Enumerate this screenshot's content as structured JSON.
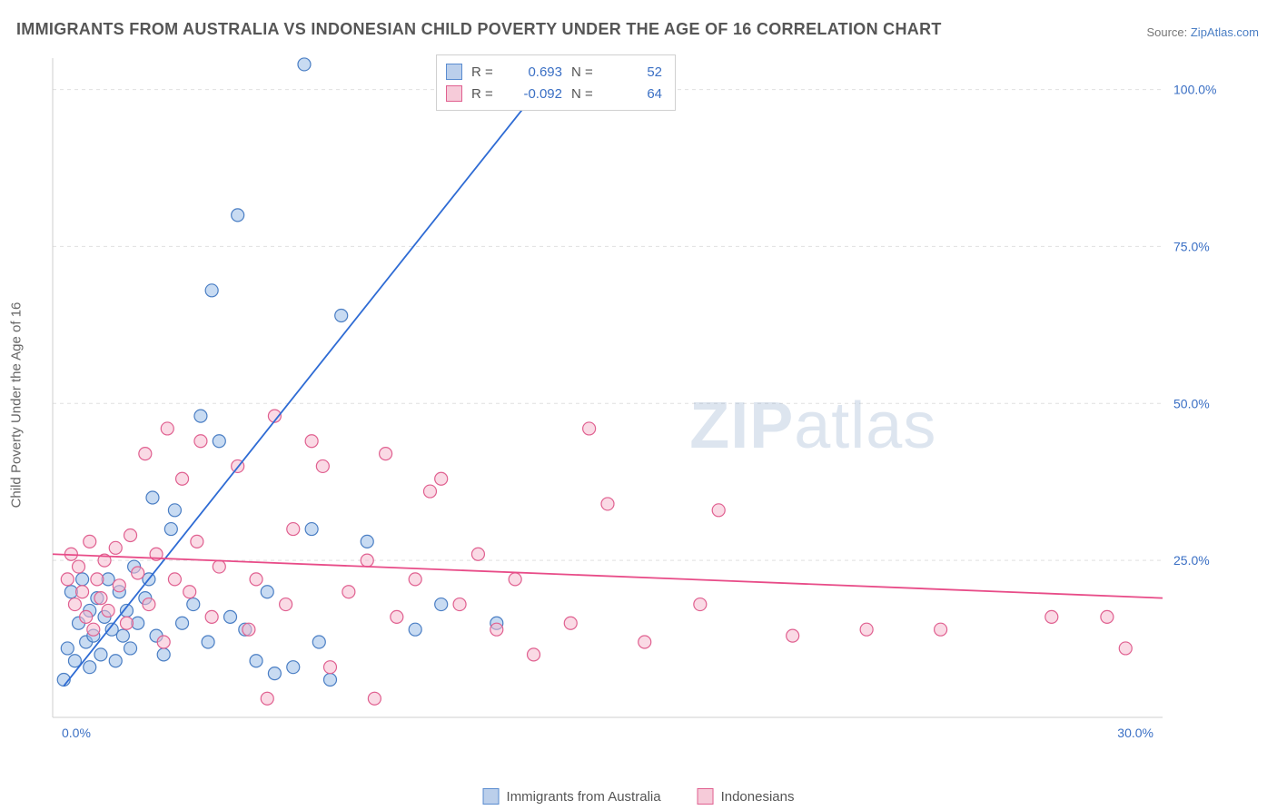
{
  "title": "IMMIGRANTS FROM AUSTRALIA VS INDONESIAN CHILD POVERTY UNDER THE AGE OF 16 CORRELATION CHART",
  "source_prefix": "Source: ",
  "source_link": "ZipAtlas.com",
  "ylabel": "Child Poverty Under the Age of 16",
  "watermark_a": "ZIP",
  "watermark_b": "atlas",
  "stats": [
    {
      "r_label": "R =",
      "r": "0.693",
      "n_label": "N =",
      "n": "52",
      "cls": "blue"
    },
    {
      "r_label": "R =",
      "r": "-0.092",
      "n_label": "N =",
      "n": "64",
      "cls": "pink"
    }
  ],
  "legend": [
    {
      "label": "Immigrants from Australia",
      "cls": "blue"
    },
    {
      "label": "Indonesians",
      "cls": "pink"
    }
  ],
  "chart": {
    "type": "scatter",
    "xlim": [
      0,
      30
    ],
    "ylim": [
      0,
      105
    ],
    "xticks": [
      0,
      30
    ],
    "xtick_labels": [
      "0.0%",
      "30.0%"
    ],
    "yticks": [
      25,
      50,
      75,
      100
    ],
    "ytick_labels": [
      "25.0%",
      "50.0%",
      "75.0%",
      "100.0%"
    ],
    "xtick_color": "#3a6fc4",
    "ytick_color": "#3a6fc4",
    "tick_fontsize": 14,
    "grid_color": "#e0e0e0",
    "grid_dash": "4,4",
    "axis_color": "#cfcfcf",
    "background_color": "#ffffff",
    "marker_radius": 7,
    "marker_stroke_width": 1.2,
    "marker_opacity": 0.55,
    "line_width": 1.8,
    "series": [
      {
        "name": "Immigrants from Australia",
        "marker_fill": "#9abde8",
        "marker_stroke": "#4a7ec4",
        "line_color": "#2e6bd4",
        "line_x": [
          0.3,
          13.8
        ],
        "line_y": [
          5,
          105
        ],
        "points": [
          [
            0.3,
            6
          ],
          [
            0.4,
            11
          ],
          [
            0.5,
            20
          ],
          [
            0.6,
            9
          ],
          [
            0.7,
            15
          ],
          [
            0.8,
            22
          ],
          [
            0.9,
            12
          ],
          [
            1.0,
            17
          ],
          [
            1.0,
            8
          ],
          [
            1.1,
            13
          ],
          [
            1.2,
            19
          ],
          [
            1.3,
            10
          ],
          [
            1.4,
            16
          ],
          [
            1.5,
            22
          ],
          [
            1.6,
            14
          ],
          [
            1.7,
            9
          ],
          [
            1.8,
            20
          ],
          [
            1.9,
            13
          ],
          [
            2.0,
            17
          ],
          [
            2.1,
            11
          ],
          [
            2.2,
            24
          ],
          [
            2.3,
            15
          ],
          [
            2.5,
            19
          ],
          [
            2.6,
            22
          ],
          [
            2.7,
            35
          ],
          [
            2.8,
            13
          ],
          [
            3.0,
            10
          ],
          [
            3.2,
            30
          ],
          [
            3.3,
            33
          ],
          [
            3.5,
            15
          ],
          [
            3.8,
            18
          ],
          [
            4.0,
            48
          ],
          [
            4.2,
            12
          ],
          [
            4.3,
            68
          ],
          [
            4.5,
            44
          ],
          [
            4.8,
            16
          ],
          [
            5.0,
            80
          ],
          [
            5.2,
            14
          ],
          [
            5.5,
            9
          ],
          [
            5.8,
            20
          ],
          [
            6.0,
            7
          ],
          [
            6.5,
            8
          ],
          [
            6.8,
            104
          ],
          [
            7.0,
            30
          ],
          [
            7.2,
            12
          ],
          [
            7.5,
            6
          ],
          [
            7.8,
            64
          ],
          [
            8.5,
            28
          ],
          [
            9.8,
            14
          ],
          [
            10.5,
            18
          ],
          [
            12.0,
            15
          ],
          [
            13.5,
            104
          ]
        ]
      },
      {
        "name": "Indonesians",
        "marker_fill": "#f5bccf",
        "marker_stroke": "#e06090",
        "line_color": "#e84c88",
        "line_x": [
          0,
          30
        ],
        "line_y": [
          26,
          19
        ],
        "points": [
          [
            0.4,
            22
          ],
          [
            0.5,
            26
          ],
          [
            0.6,
            18
          ],
          [
            0.7,
            24
          ],
          [
            0.8,
            20
          ],
          [
            0.9,
            16
          ],
          [
            1.0,
            28
          ],
          [
            1.1,
            14
          ],
          [
            1.2,
            22
          ],
          [
            1.3,
            19
          ],
          [
            1.4,
            25
          ],
          [
            1.5,
            17
          ],
          [
            1.7,
            27
          ],
          [
            1.8,
            21
          ],
          [
            2.0,
            15
          ],
          [
            2.1,
            29
          ],
          [
            2.3,
            23
          ],
          [
            2.5,
            42
          ],
          [
            2.6,
            18
          ],
          [
            2.8,
            26
          ],
          [
            3.0,
            12
          ],
          [
            3.1,
            46
          ],
          [
            3.3,
            22
          ],
          [
            3.5,
            38
          ],
          [
            3.7,
            20
          ],
          [
            3.9,
            28
          ],
          [
            4.0,
            44
          ],
          [
            4.3,
            16
          ],
          [
            4.5,
            24
          ],
          [
            5.0,
            40
          ],
          [
            5.3,
            14
          ],
          [
            5.5,
            22
          ],
          [
            5.8,
            3
          ],
          [
            6.0,
            48
          ],
          [
            6.3,
            18
          ],
          [
            6.5,
            30
          ],
          [
            7.0,
            44
          ],
          [
            7.3,
            40
          ],
          [
            7.5,
            8
          ],
          [
            8.0,
            20
          ],
          [
            8.5,
            25
          ],
          [
            8.7,
            3
          ],
          [
            9.0,
            42
          ],
          [
            9.3,
            16
          ],
          [
            9.8,
            22
          ],
          [
            10.2,
            36
          ],
          [
            10.5,
            38
          ],
          [
            11.0,
            18
          ],
          [
            11.5,
            26
          ],
          [
            12.0,
            14
          ],
          [
            12.5,
            22
          ],
          [
            13.0,
            10
          ],
          [
            14.0,
            15
          ],
          [
            14.5,
            46
          ],
          [
            15.0,
            34
          ],
          [
            16.0,
            12
          ],
          [
            17.5,
            18
          ],
          [
            18.0,
            33
          ],
          [
            20.0,
            13
          ],
          [
            22.0,
            14
          ],
          [
            24.0,
            14
          ],
          [
            27.0,
            16
          ],
          [
            28.5,
            16
          ],
          [
            29.0,
            11
          ]
        ]
      }
    ]
  }
}
